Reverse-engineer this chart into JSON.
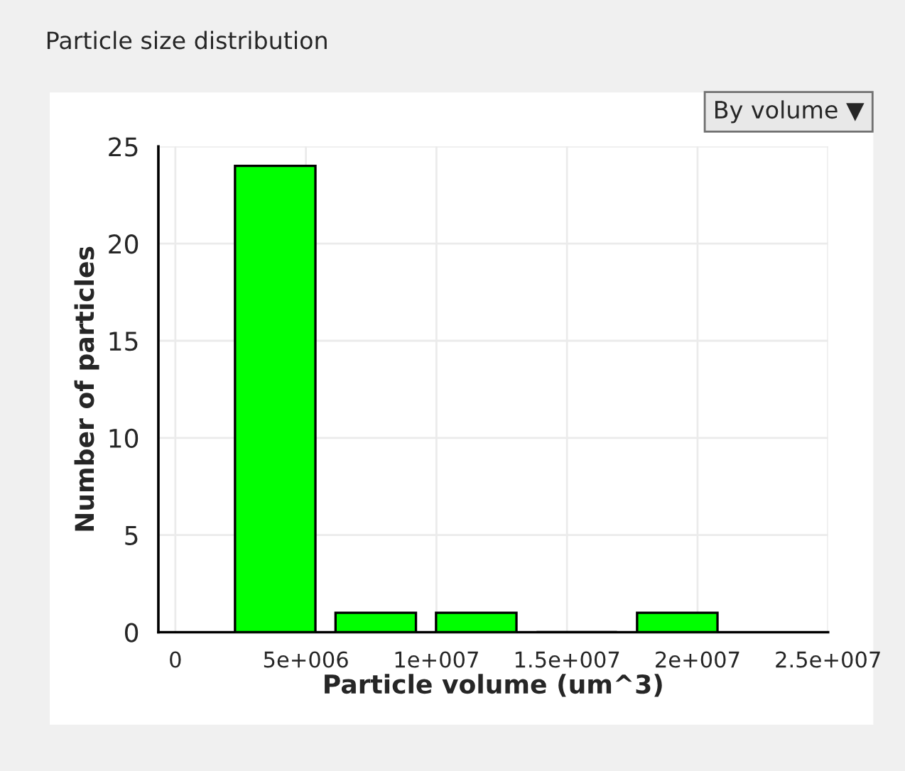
{
  "chart_data": {
    "type": "histogram",
    "title": "Particle size distribution",
    "xlabel": "Particle volume (um^3)",
    "ylabel": "Number of particles",
    "bins": [
      1900000,
      5750000,
      9600000,
      13450000,
      17300000,
      21150000
    ],
    "values": [
      24,
      1,
      1,
      0,
      1
    ],
    "color": "#00ff00",
    "xlim": [
      -650000,
      25000000
    ],
    "xticks": [
      0,
      {
        "value": 5000000,
        "label": "5e+006"
      },
      {
        "value": 10000000,
        "label": "1e+007"
      },
      {
        "value": 15000000,
        "label": "1.5e+007"
      },
      {
        "value": 20000000,
        "label": "2e+007"
      },
      {
        "value": 25000000,
        "label": "2.5e+007"
      }
    ],
    "ylim": [
      0,
      25
    ],
    "yticks": [
      0,
      5,
      10,
      15,
      20,
      25
    ],
    "grid": true,
    "annotations": [
      "By volume ▼"
    ]
  }
}
